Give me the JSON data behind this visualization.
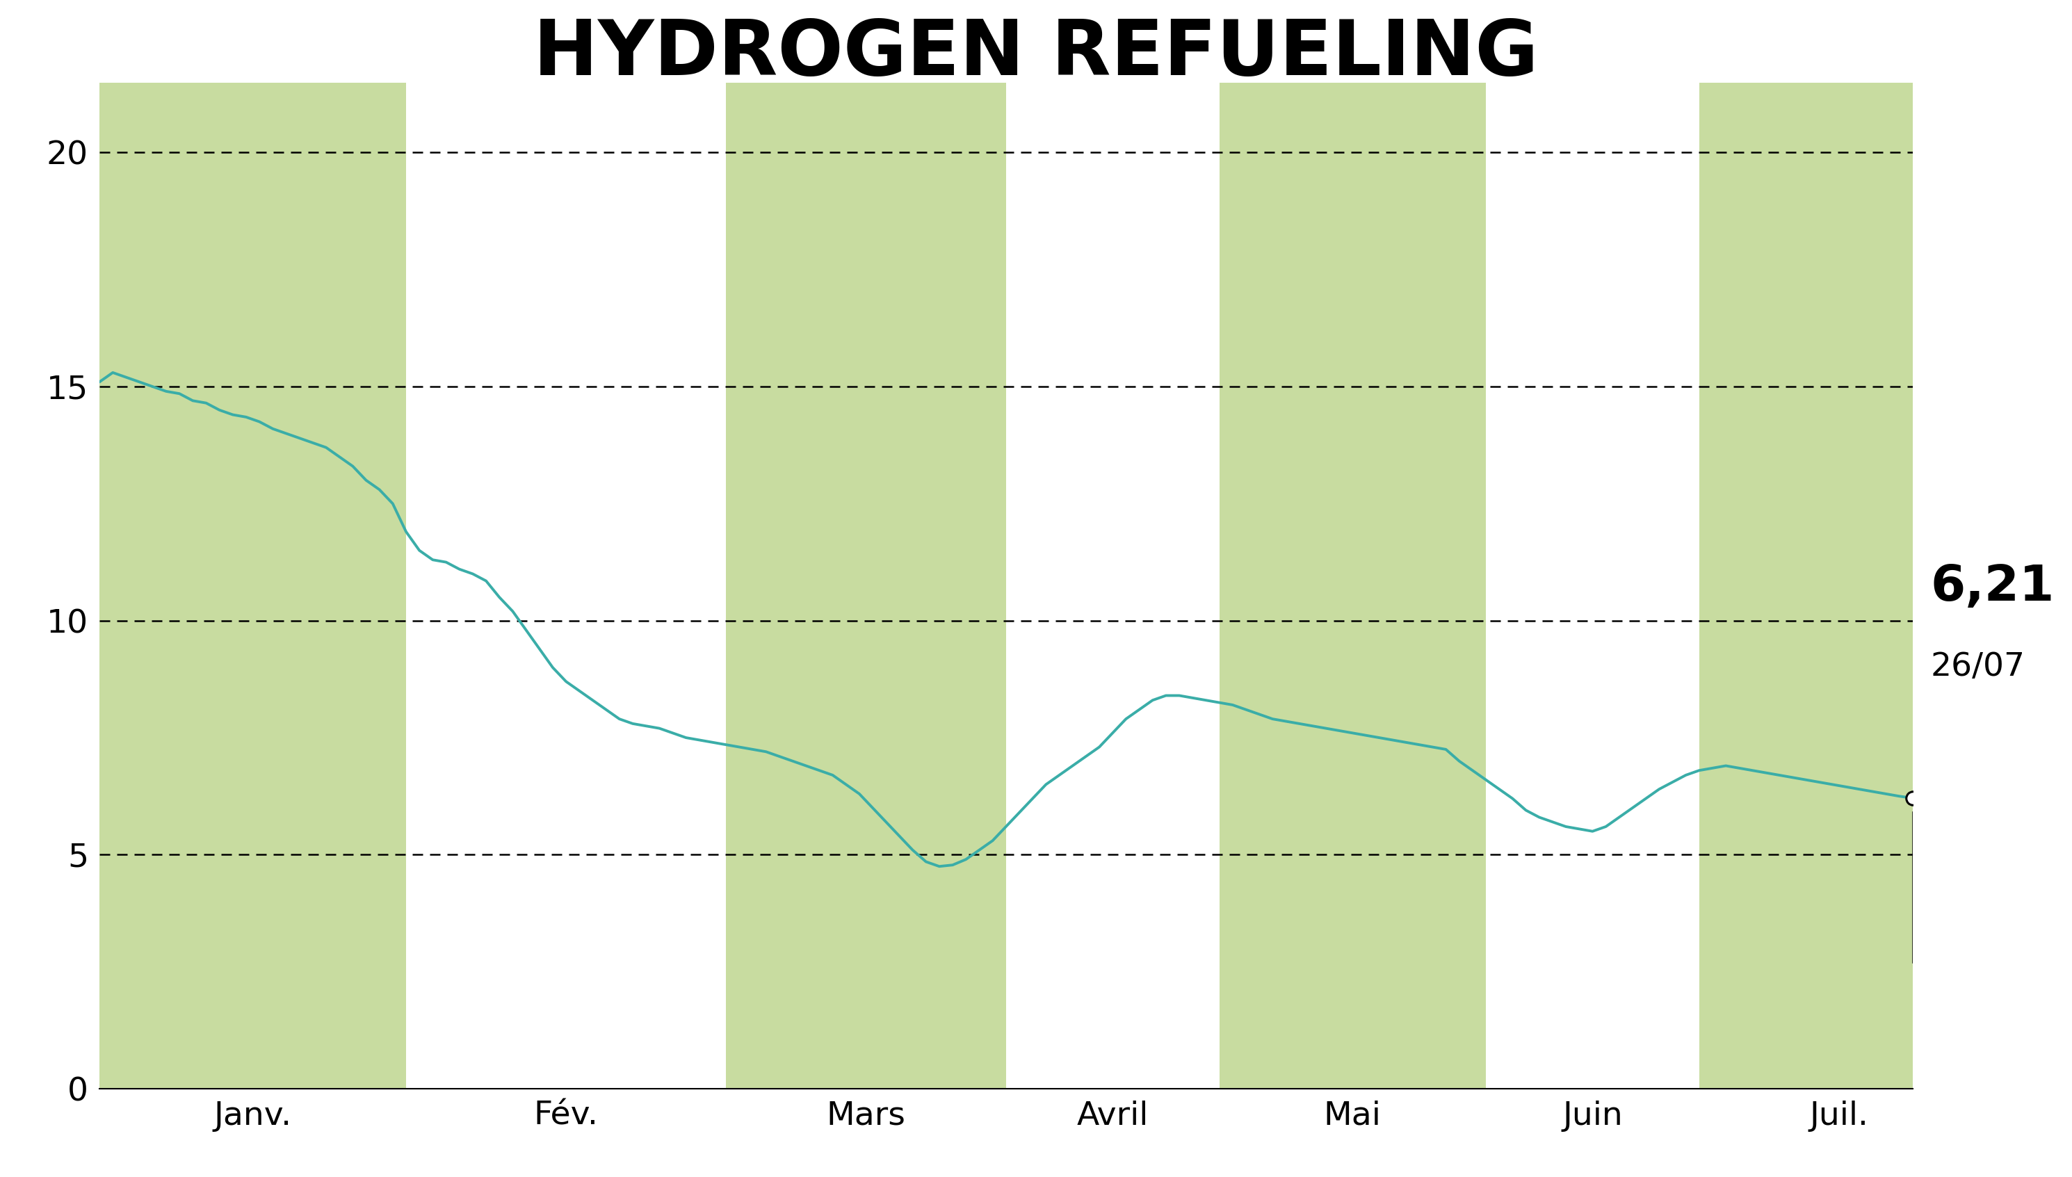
{
  "title": "HYDROGEN REFUELING",
  "title_bg_color": "#c8dca0",
  "chart_bg_color": "#ffffff",
  "line_color": "#3aada8",
  "fill_color": "#c8dca0",
  "last_price": "6,21",
  "last_date": "26/07",
  "yticks": [
    0,
    5,
    10,
    15,
    20
  ],
  "xtick_labels": [
    "Janv.",
    "Fév.",
    "Mars",
    "Avril",
    "Mai",
    "Juin",
    "Juil."
  ],
  "prices": [
    15.1,
    15.3,
    15.2,
    15.1,
    15.0,
    14.9,
    14.85,
    14.7,
    14.65,
    14.5,
    14.4,
    14.35,
    14.25,
    14.1,
    14.0,
    13.9,
    13.8,
    13.7,
    13.5,
    13.3,
    13.0,
    12.8,
    12.5,
    11.9,
    11.5,
    11.3,
    11.25,
    11.1,
    11.0,
    10.85,
    10.5,
    10.2,
    9.8,
    9.4,
    9.0,
    8.7,
    8.5,
    8.3,
    8.1,
    7.9,
    7.8,
    7.75,
    7.7,
    7.6,
    7.5,
    7.45,
    7.4,
    7.35,
    7.3,
    7.25,
    7.2,
    7.1,
    7.0,
    6.9,
    6.8,
    6.7,
    6.5,
    6.3,
    6.0,
    5.7,
    5.4,
    5.1,
    4.85,
    4.75,
    4.78,
    4.9,
    5.1,
    5.3,
    5.6,
    5.9,
    6.2,
    6.5,
    6.7,
    6.9,
    7.1,
    7.3,
    7.6,
    7.9,
    8.1,
    8.3,
    8.4,
    8.4,
    8.35,
    8.3,
    8.25,
    8.2,
    8.1,
    8.0,
    7.9,
    7.85,
    7.8,
    7.75,
    7.7,
    7.65,
    7.6,
    7.55,
    7.5,
    7.45,
    7.4,
    7.35,
    7.3,
    7.25,
    7.0,
    6.8,
    6.6,
    6.4,
    6.2,
    5.95,
    5.8,
    5.7,
    5.6,
    5.55,
    5.5,
    5.6,
    5.8,
    6.0,
    6.2,
    6.4,
    6.55,
    6.7,
    6.8,
    6.85,
    6.9,
    6.85,
    6.8,
    6.75,
    6.7,
    6.65,
    6.6,
    6.55,
    6.5,
    6.45,
    6.4,
    6.35,
    6.3,
    6.25,
    6.21
  ],
  "month_boundaries": [
    0,
    23,
    47,
    68,
    84,
    104,
    120,
    141
  ],
  "shaded_month_indices": [
    0,
    2,
    4,
    6
  ]
}
